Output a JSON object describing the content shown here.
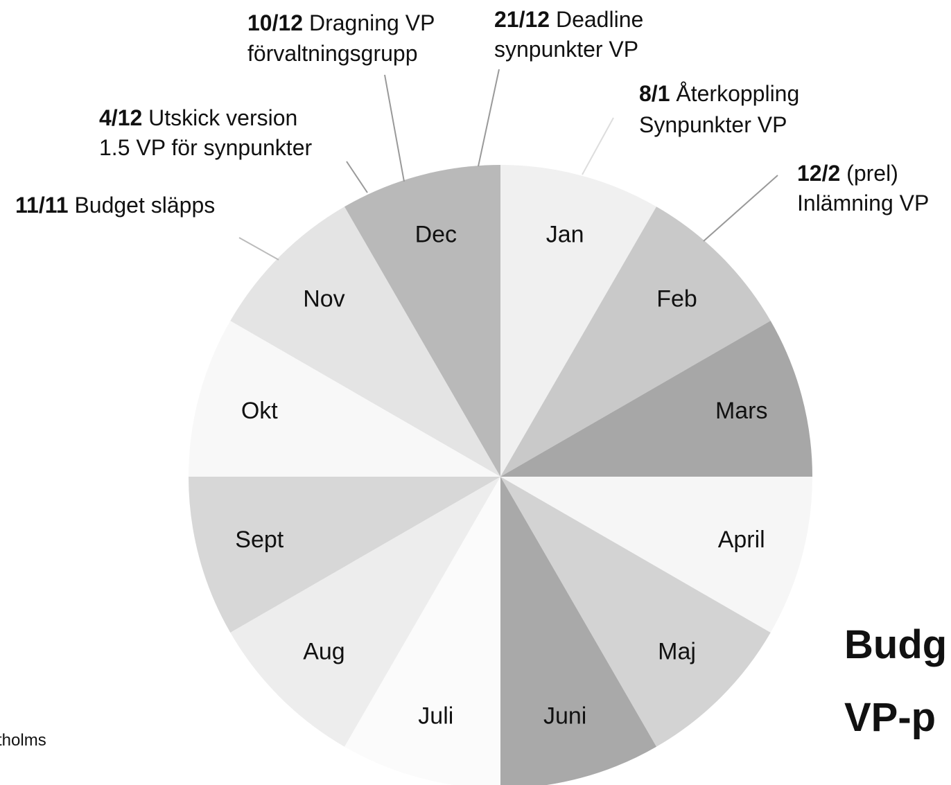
{
  "chart_data": {
    "type": "pie",
    "categories": [
      "Jan",
      "Feb",
      "Mars",
      "April",
      "Maj",
      "Juni",
      "Juli",
      "Aug",
      "Sept",
      "Okt",
      "Nov",
      "Dec"
    ],
    "values": [
      1,
      1,
      1,
      1,
      1,
      1,
      1,
      1,
      1,
      1,
      1,
      1
    ],
    "colors": [
      "#f0f0f0",
      "#c9c9c9",
      "#a7a7a7",
      "#f6f6f6",
      "#d3d3d3",
      "#a9a9a9",
      "#fbfbfb",
      "#ededed",
      "#d7d7d7",
      "#f8f8f8",
      "#e4e4e4",
      "#b9b9b9"
    ],
    "annotations": [
      {
        "bold": "10/12",
        "text": "Dragning VP",
        "line2": "förvaltningsgrupp"
      },
      {
        "bold": "21/12",
        "text": "Deadline",
        "line2": "synpunkter VP"
      },
      {
        "bold": "8/1",
        "text": "Återkoppling",
        "line2": "Synpunkter VP"
      },
      {
        "bold": "4/12",
        "text": "Utskick version",
        "line2": "1.5 VP för synpunkter"
      },
      {
        "bold": "12/2",
        "text": "(prel)",
        "line2": "Inlämning VP"
      },
      {
        "bold": "11/11",
        "text": "Budget släpps"
      }
    ],
    "title_fragments": [
      "Budg",
      "VP-p"
    ],
    "footer_fragment": "tholms"
  }
}
